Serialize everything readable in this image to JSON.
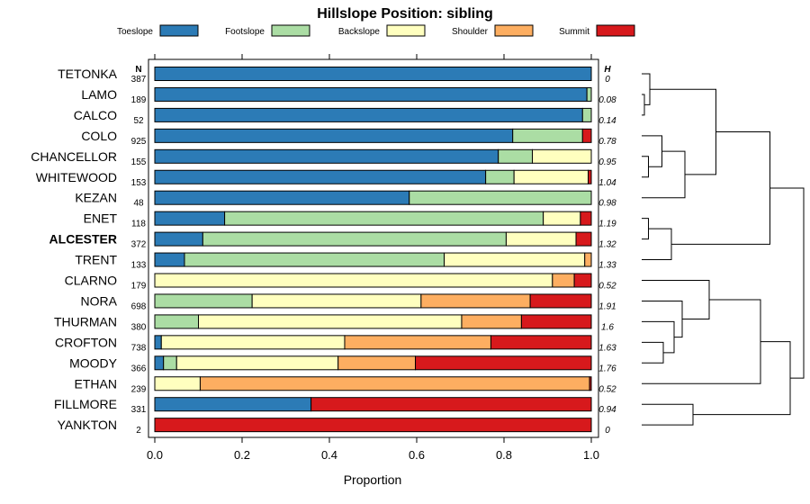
{
  "chart_data": {
    "type": "bar",
    "orientation": "horizontal",
    "stacked": true,
    "title": "Hillslope Position: sibling",
    "xlabel": "Proportion",
    "xlim": [
      0,
      1
    ],
    "xticks": [
      0,
      0.2,
      0.4,
      0.6,
      0.8,
      1
    ],
    "xtick_labels": [
      "0.0",
      "0.2",
      "0.4",
      "0.6",
      "0.8",
      "1.0"
    ],
    "n_header": "N",
    "h_header": "H",
    "legend": [
      {
        "name": "Toeslope",
        "color": "#2c7bb6"
      },
      {
        "name": "Footslope",
        "color": "#abdda4"
      },
      {
        "name": "Backslope",
        "color": "#ffffbf"
      },
      {
        "name": "Shoulder",
        "color": "#fdae61"
      },
      {
        "name": "Summit",
        "color": "#d7191c"
      }
    ],
    "highlight": "ALCESTER",
    "rows": [
      {
        "label": "TETONKA",
        "n": "387",
        "h": "0",
        "values": [
          1,
          0,
          0,
          0,
          0
        ]
      },
      {
        "label": "LAMO",
        "n": "189",
        "h": "0.08",
        "values": [
          0.99,
          0.01,
          0,
          0,
          0
        ]
      },
      {
        "label": "CALCO",
        "n": "52",
        "h": "0.14",
        "values": [
          0.98,
          0.02,
          0,
          0,
          0
        ]
      },
      {
        "label": "COLO",
        "n": "925",
        "h": "0.78",
        "values": [
          0.82,
          0.16,
          0,
          0,
          0.02
        ]
      },
      {
        "label": "CHANCELLOR",
        "n": "155",
        "h": "0.95",
        "values": [
          0.787,
          0.078,
          0.135,
          0,
          0
        ]
      },
      {
        "label": "WHITEWOOD",
        "n": "153",
        "h": "1.04",
        "values": [
          0.758,
          0.065,
          0.17,
          0,
          0.007
        ]
      },
      {
        "label": "KEZAN",
        "n": "48",
        "h": "0.98",
        "values": [
          0.583,
          0.417,
          0,
          0,
          0
        ]
      },
      {
        "label": "ENET",
        "n": "118",
        "h": "1.19",
        "values": [
          0.16,
          0.73,
          0.085,
          0,
          0.025
        ]
      },
      {
        "label": "ALCESTER",
        "n": "372",
        "h": "1.32",
        "values": [
          0.11,
          0.695,
          0.16,
          0,
          0.035
        ]
      },
      {
        "label": "TRENT",
        "n": "133",
        "h": "1.33",
        "values": [
          0.068,
          0.595,
          0.322,
          0.015,
          0
        ]
      },
      {
        "label": "CLARNO",
        "n": "179",
        "h": "0.52",
        "values": [
          0,
          0,
          0.911,
          0.05,
          0.039
        ]
      },
      {
        "label": "NORA",
        "n": "698",
        "h": "1.91",
        "values": [
          0,
          0.223,
          0.387,
          0.25,
          0.14
        ]
      },
      {
        "label": "THURMAN",
        "n": "380",
        "h": "1.6",
        "values": [
          0,
          0.1,
          0.603,
          0.137,
          0.16
        ]
      },
      {
        "label": "CROFTON",
        "n": "738",
        "h": "1.63",
        "values": [
          0.015,
          0,
          0.42,
          0.335,
          0.23
        ]
      },
      {
        "label": "MOODY",
        "n": "366",
        "h": "1.76",
        "values": [
          0.02,
          0.03,
          0.37,
          0.177,
          0.403
        ]
      },
      {
        "label": "ETHAN",
        "n": "239",
        "h": "0.52",
        "values": [
          0,
          0,
          0.104,
          0.892,
          0.004
        ]
      },
      {
        "label": "FILLMORE",
        "n": "331",
        "h": "0.94",
        "values": [
          0.358,
          0,
          0,
          0,
          0.642
        ]
      },
      {
        "label": "YANKTON",
        "n": "2",
        "h": "0",
        "values": [
          0,
          0,
          0,
          0,
          1
        ]
      }
    ],
    "dendrogram": {
      "type": "hierarchical-clustering",
      "leaf_order": [
        "TETONKA",
        "LAMO",
        "CALCO",
        "COLO",
        "CHANCELLOR",
        "WHITEWOOD",
        "KEZAN",
        "ENET",
        "ALCESTER",
        "TRENT",
        "CLARNO",
        "NORA",
        "THURMAN",
        "CROFTON",
        "MOODY",
        "ETHAN",
        "FILLMORE",
        "YANKTON"
      ],
      "merges": [
        {
          "left": "L1",
          "right": "L2",
          "height": 0.02
        },
        {
          "left": "L0",
          "right": "M0",
          "height": 0.06
        },
        {
          "left": "L4",
          "right": "L5",
          "height": 0.05
        },
        {
          "left": "L3",
          "right": "M2",
          "height": 0.15
        },
        {
          "left": "M3",
          "right": "L6",
          "height": 0.32
        },
        {
          "left": "M1",
          "right": "M4",
          "height": 0.55
        },
        {
          "left": "L7",
          "right": "L8",
          "height": 0.05
        },
        {
          "left": "M6",
          "right": "L9",
          "height": 0.22
        },
        {
          "left": "M5",
          "right": "M7",
          "height": 0.95
        },
        {
          "left": "L13",
          "right": "L14",
          "height": 0.16
        },
        {
          "left": "L12",
          "right": "M9",
          "height": 0.24
        },
        {
          "left": "L11",
          "right": "M10",
          "height": 0.3
        },
        {
          "left": "L10",
          "right": "M11",
          "height": 0.5
        },
        {
          "left": "M12",
          "right": "L15",
          "height": 0.88
        },
        {
          "left": "L16",
          "right": "L17",
          "height": 0.38
        },
        {
          "left": "M13",
          "right": "M14",
          "height": 1.1
        },
        {
          "left": "M8",
          "right": "M15",
          "height": 1.2
        }
      ],
      "max_height": 1.2
    }
  }
}
